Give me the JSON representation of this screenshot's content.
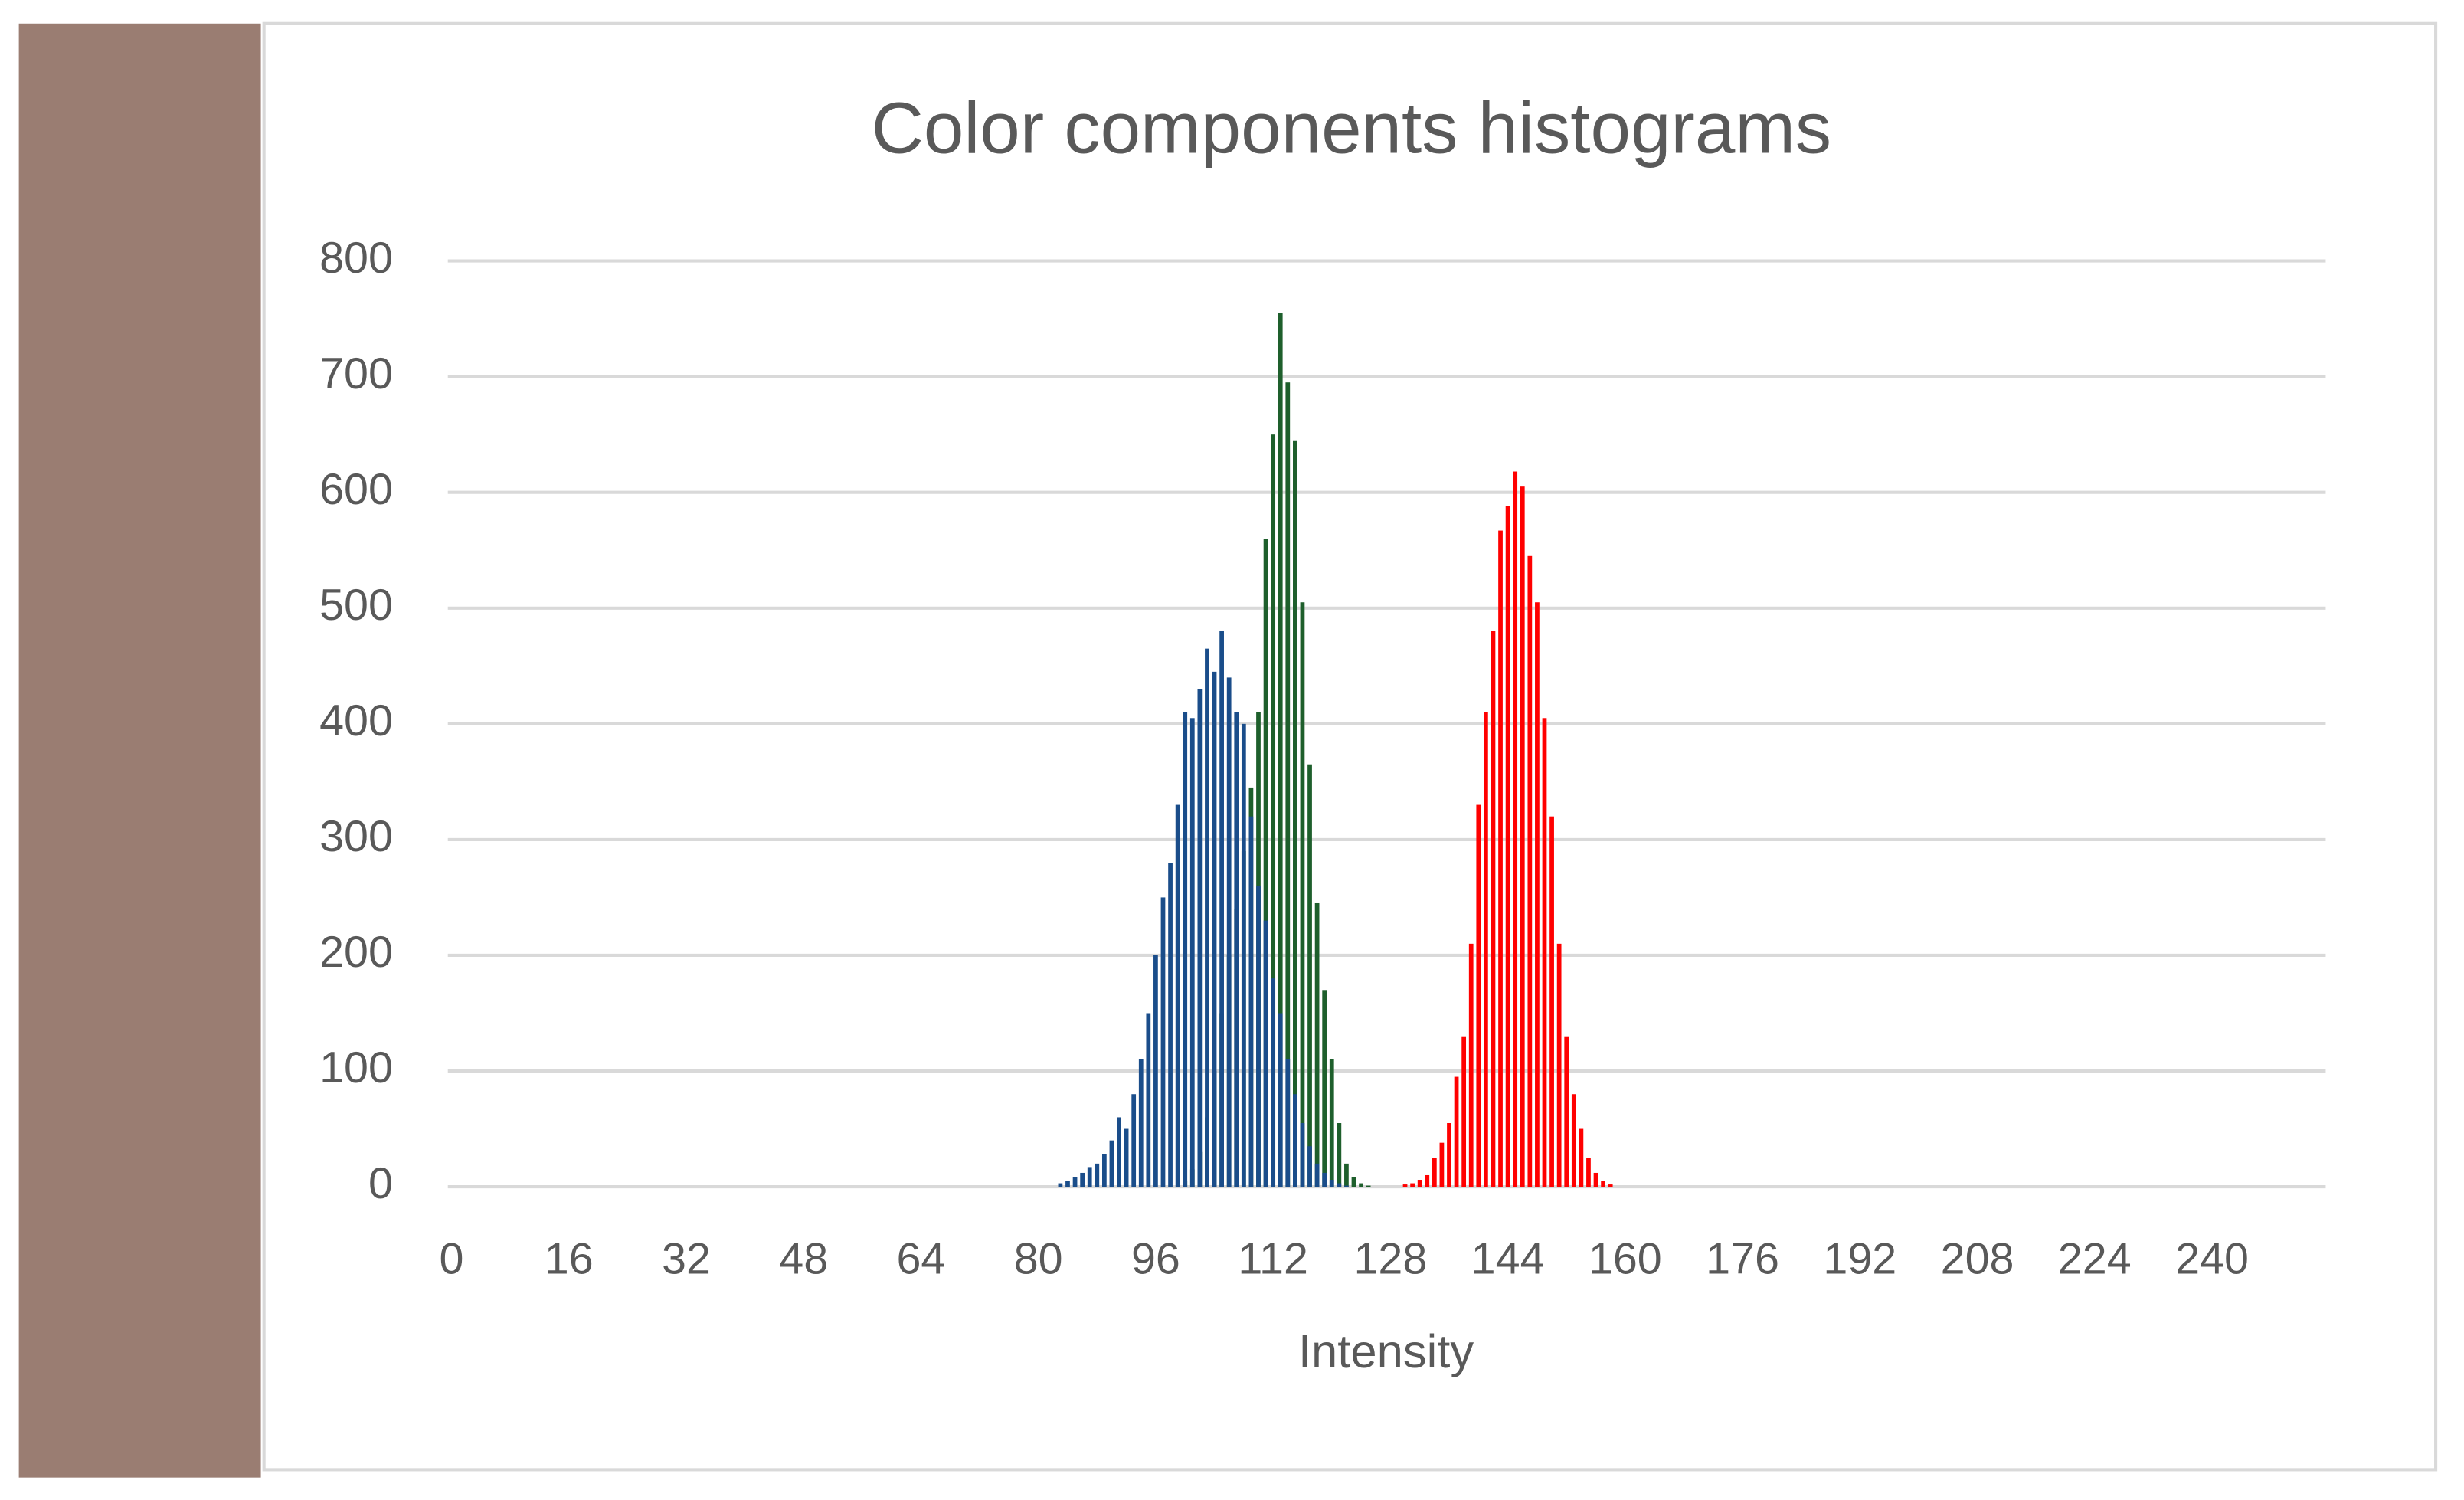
{
  "chart_data": {
    "type": "histogram",
    "title": "Color components histograms",
    "x_label": "Intensity",
    "xlim": [
      -0.5,
      255.5
    ],
    "xticks": [
      0,
      16,
      32,
      48,
      64,
      80,
      96,
      112,
      128,
      144,
      160,
      176,
      192,
      208,
      224,
      240
    ],
    "ylim": [
      0,
      800
    ],
    "yticks": [
      0,
      100,
      200,
      300,
      400,
      500,
      600,
      700,
      800
    ],
    "grid": true,
    "series": [
      {
        "color": "#1e5f2c",
        "x": [
          100,
          101,
          102,
          103,
          104,
          105,
          106,
          107,
          108,
          109,
          110,
          111,
          112,
          113,
          114,
          115,
          116,
          117,
          118,
          119,
          120,
          121,
          122,
          123,
          124,
          125
        ],
        "values": [
          5,
          15,
          30,
          60,
          100,
          150,
          200,
          240,
          290,
          345,
          410,
          560,
          650,
          755,
          695,
          645,
          505,
          365,
          245,
          170,
          110,
          55,
          20,
          8,
          3,
          1
        ]
      },
      {
        "color": "#1a4d8a",
        "x": [
          83,
          84,
          85,
          86,
          87,
          88,
          89,
          90,
          91,
          92,
          93,
          94,
          95,
          96,
          97,
          98,
          99,
          100,
          101,
          102,
          103,
          104,
          105,
          106,
          107,
          108,
          109,
          110,
          111,
          112,
          113,
          114,
          115,
          116,
          117,
          118,
          119,
          120,
          121,
          122
        ],
        "values": [
          3,
          5,
          8,
          12,
          17,
          20,
          28,
          40,
          60,
          50,
          80,
          110,
          150,
          200,
          250,
          280,
          330,
          410,
          405,
          430,
          465,
          445,
          480,
          440,
          410,
          400,
          320,
          260,
          230,
          180,
          150,
          110,
          80,
          55,
          35,
          20,
          12,
          6,
          3,
          1
        ]
      },
      {
        "color": "#ff0000",
        "x": [
          130,
          131,
          132,
          133,
          134,
          135,
          136,
          137,
          138,
          139,
          140,
          141,
          142,
          143,
          144,
          145,
          146,
          147,
          148,
          149,
          150,
          151,
          152,
          153,
          154,
          155,
          156,
          157,
          158
        ],
        "values": [
          2,
          3,
          6,
          10,
          25,
          38,
          55,
          95,
          130,
          210,
          330,
          410,
          480,
          567,
          588,
          618,
          605,
          545,
          505,
          405,
          320,
          210,
          130,
          80,
          50,
          25,
          12,
          5,
          2
        ]
      }
    ]
  }
}
